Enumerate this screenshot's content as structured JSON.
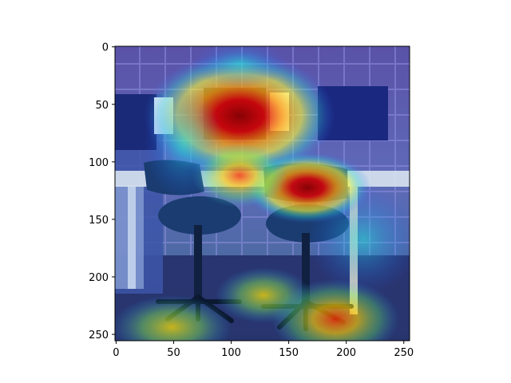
{
  "figure": {
    "description_free": true,
    "x_axis": {
      "ticks": [
        {
          "value": 0,
          "label": "0"
        },
        {
          "value": 50,
          "label": "50"
        },
        {
          "value": 100,
          "label": "100"
        },
        {
          "value": 150,
          "label": "150"
        },
        {
          "value": 200,
          "label": "200"
        },
        {
          "value": 250,
          "label": "250"
        }
      ],
      "range": [
        0,
        256
      ]
    },
    "y_axis": {
      "ticks": [
        {
          "value": 0,
          "label": "0"
        },
        {
          "value": 50,
          "label": "50"
        },
        {
          "value": 100,
          "label": "100"
        },
        {
          "value": 150,
          "label": "150"
        },
        {
          "value": 200,
          "label": "200"
        },
        {
          "value": 250,
          "label": "250"
        }
      ],
      "range": [
        0,
        256
      ]
    },
    "colors": {
      "axis": "#000000",
      "wall": "#6f6aa0",
      "floor": "#2a2f6a"
    }
  }
}
